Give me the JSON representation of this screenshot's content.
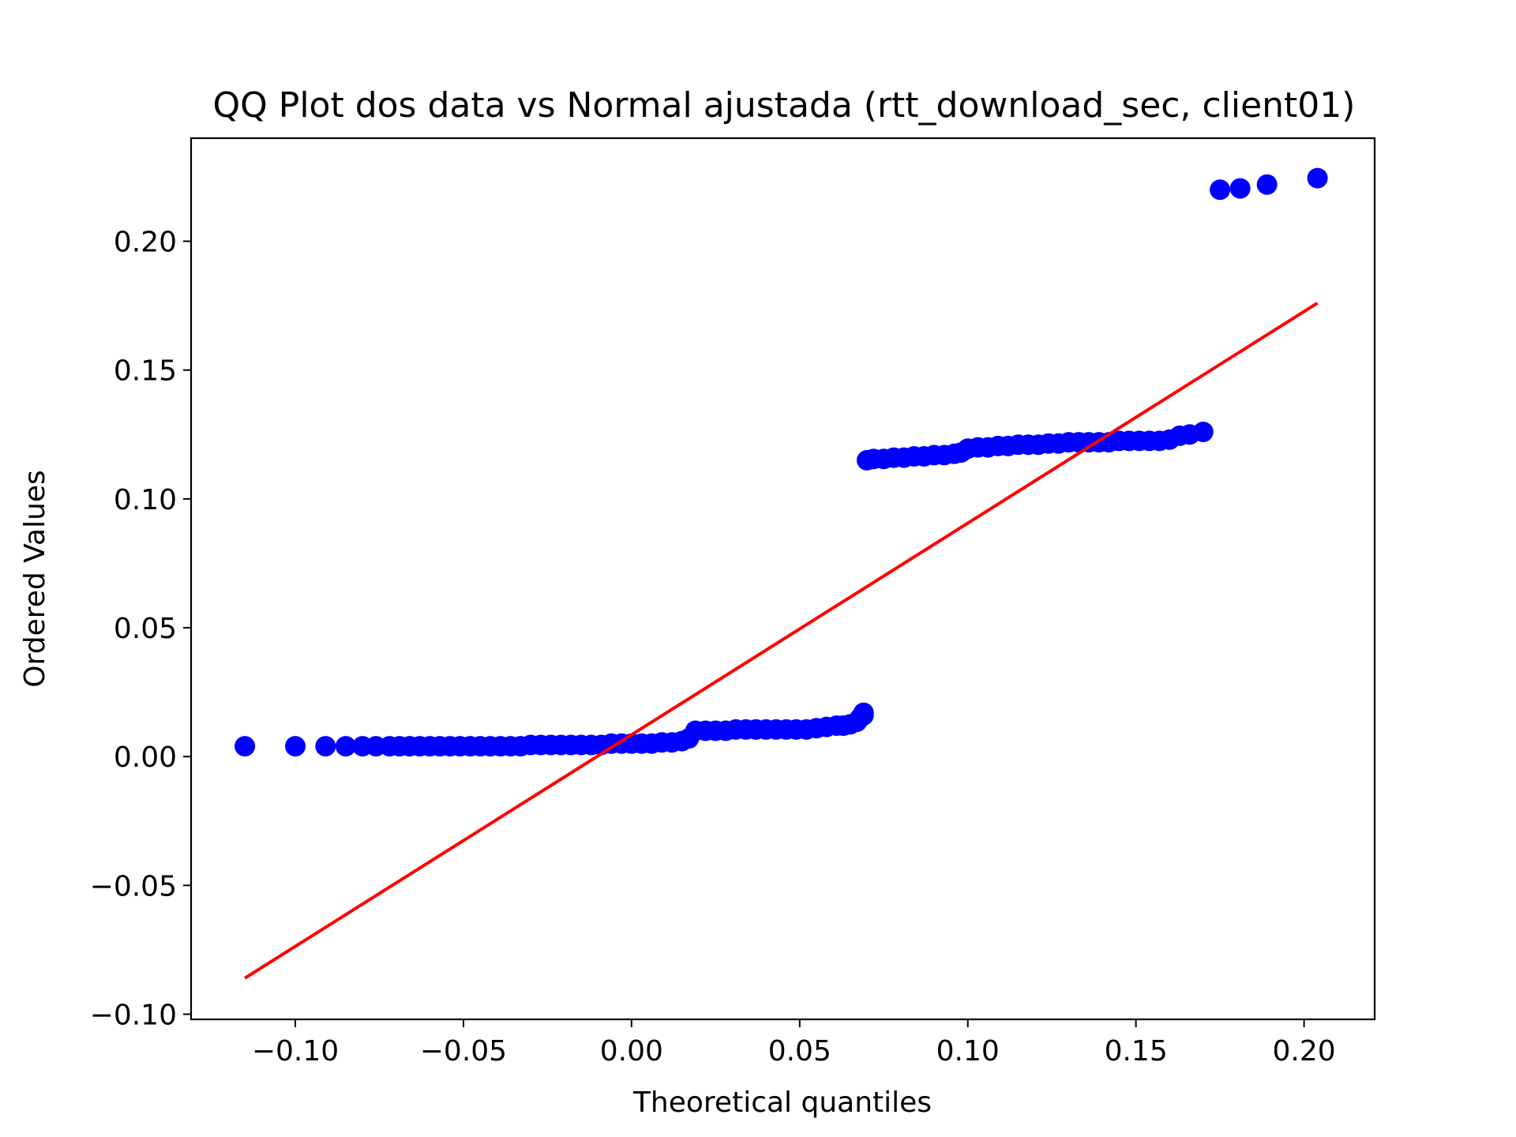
{
  "chart_data": {
    "type": "scatter",
    "title": "QQ Plot dos data vs Normal ajustada (rtt_download_sec, client01)",
    "xlabel": "Theoretical quantiles",
    "ylabel": "Ordered Values",
    "xlim": [
      -0.131,
      0.221
    ],
    "ylim": [
      -0.102,
      0.24
    ],
    "xticks": [
      -0.1,
      -0.05,
      0.0,
      0.05,
      0.1,
      0.15,
      0.2
    ],
    "xtick_labels": [
      "−0.10",
      "−0.05",
      "0.00",
      "0.05",
      "0.10",
      "0.15",
      "0.20"
    ],
    "yticks": [
      -0.1,
      -0.05,
      0.0,
      0.05,
      0.1,
      0.15,
      0.2
    ],
    "ytick_labels": [
      "−0.10",
      "−0.05",
      "0.00",
      "0.05",
      "0.10",
      "0.15",
      "0.20"
    ],
    "grid": false,
    "series": [
      {
        "kind": "points",
        "color": "#0000ff",
        "x": [
          -0.115,
          -0.1,
          -0.091,
          -0.085,
          -0.08,
          -0.076,
          -0.072,
          -0.069,
          -0.066,
          -0.063,
          -0.06,
          -0.057,
          -0.054,
          -0.051,
          -0.048,
          -0.045,
          -0.042,
          -0.039,
          -0.036,
          -0.033,
          -0.03,
          -0.027,
          -0.024,
          -0.021,
          -0.018,
          -0.015,
          -0.012,
          -0.009,
          -0.006,
          -0.003,
          0.0,
          0.003,
          0.006,
          0.009,
          0.012,
          0.015,
          0.017,
          0.019,
          0.022,
          0.025,
          0.028,
          0.031,
          0.034,
          0.037,
          0.04,
          0.043,
          0.046,
          0.049,
          0.052,
          0.055,
          0.058,
          0.061,
          0.063,
          0.065,
          0.067,
          0.068,
          0.069,
          0.069,
          0.07,
          0.072,
          0.075,
          0.078,
          0.081,
          0.084,
          0.087,
          0.09,
          0.093,
          0.096,
          0.098,
          0.1,
          0.103,
          0.106,
          0.109,
          0.112,
          0.115,
          0.118,
          0.121,
          0.124,
          0.127,
          0.13,
          0.133,
          0.136,
          0.139,
          0.142,
          0.145,
          0.148,
          0.151,
          0.154,
          0.157,
          0.16,
          0.163,
          0.166,
          0.17,
          0.175,
          0.181,
          0.189,
          0.204
        ],
        "y": [
          0.004,
          0.004,
          0.004,
          0.004,
          0.004,
          0.004,
          0.004,
          0.004,
          0.004,
          0.004,
          0.004,
          0.004,
          0.004,
          0.004,
          0.004,
          0.004,
          0.004,
          0.004,
          0.004,
          0.004,
          0.0045,
          0.0045,
          0.0045,
          0.0045,
          0.0045,
          0.0045,
          0.0045,
          0.0045,
          0.005,
          0.005,
          0.005,
          0.005,
          0.005,
          0.0055,
          0.0055,
          0.006,
          0.007,
          0.01,
          0.01,
          0.01,
          0.01,
          0.0105,
          0.0105,
          0.0105,
          0.0105,
          0.0105,
          0.0105,
          0.0105,
          0.0105,
          0.011,
          0.0115,
          0.012,
          0.012,
          0.0125,
          0.0135,
          0.015,
          0.016,
          0.017,
          0.115,
          0.1155,
          0.1155,
          0.116,
          0.116,
          0.1165,
          0.1165,
          0.117,
          0.117,
          0.1175,
          0.118,
          0.1195,
          0.12,
          0.12,
          0.1205,
          0.1205,
          0.121,
          0.121,
          0.121,
          0.1215,
          0.1215,
          0.122,
          0.122,
          0.122,
          0.122,
          0.122,
          0.1225,
          0.1225,
          0.1225,
          0.1225,
          0.1225,
          0.123,
          0.1245,
          0.125,
          0.126,
          0.22,
          0.2205,
          0.222,
          0.2245
        ]
      },
      {
        "kind": "line",
        "color": "#ff0000",
        "x": [
          -0.115,
          0.204
        ],
        "y": [
          -0.086,
          0.176
        ]
      }
    ]
  }
}
